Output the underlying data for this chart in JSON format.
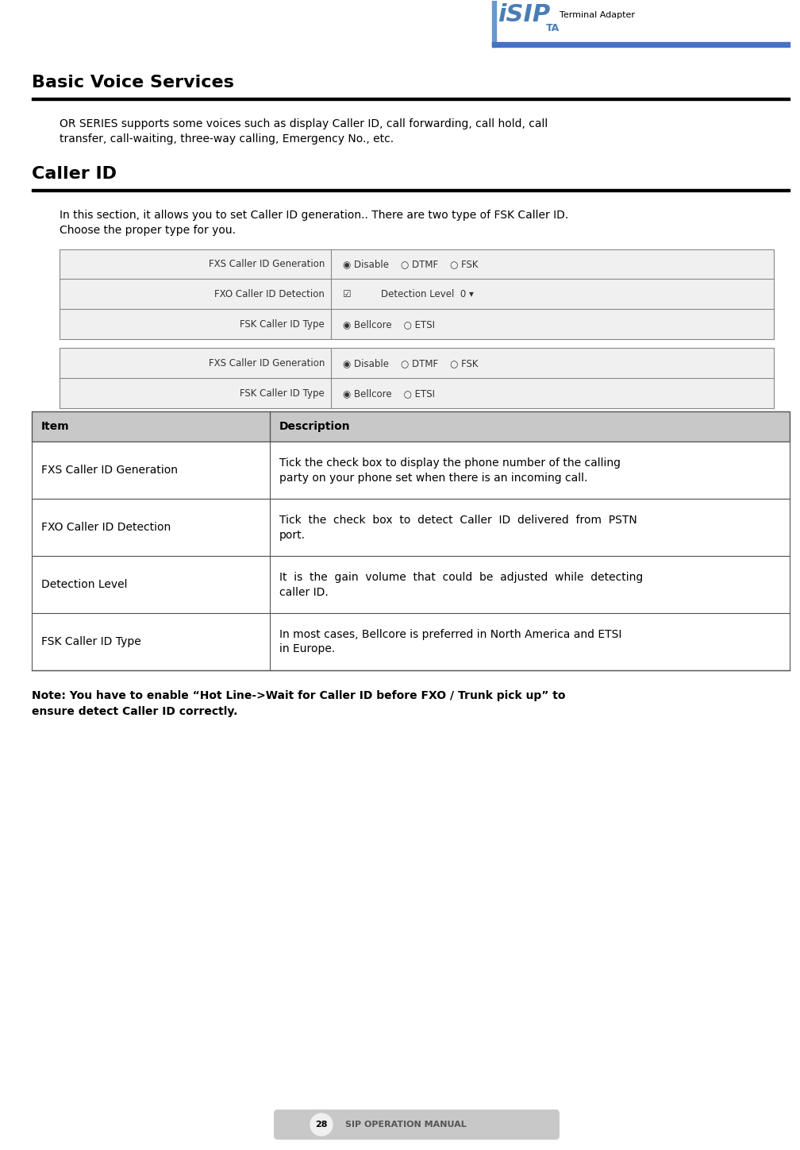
{
  "page_width": 10.08,
  "page_height": 14.48,
  "bg_color": "#ffffff",
  "header_logo_text": "Terminal Adapter",
  "header_logo_color": "#4472c4",
  "section1_title": "Basic Voice Services",
  "section1_body": "OR SERIES supports some voices such as display Caller ID, call forwarding, call hold, call\ntransfer, call-waiting, three-way calling, Emergency No., etc.",
  "section2_title": "Caller ID",
  "section2_body": "In this section, it allows you to set Caller ID generation.. There are two type of FSK Caller ID.\nChoose the proper type for you.",
  "table1_rows": [
    [
      "FXS Caller ID Generation",
      "◉ Disable    ○ DTMF    ○ FSK"
    ],
    [
      "FXO Caller ID Detection",
      "☑          Detection Level  0 ▾"
    ],
    [
      "FSK Caller ID Type",
      "◉ Bellcore    ○ ETSI"
    ]
  ],
  "table2_rows": [
    [
      "FXS Caller ID Generation",
      "◉ Disable    ○ DTMF    ○ FSK"
    ],
    [
      "FSK Caller ID Type",
      "◉ Bellcore    ○ ETSI"
    ]
  ],
  "desc_table_header": [
    "Item",
    "Description"
  ],
  "desc_table_rows": [
    [
      "FXS Caller ID Generation",
      "Tick the check box to display the phone number of the calling\nparty on your phone set when there is an incoming call."
    ],
    [
      "FXO Caller ID Detection",
      "Tick  the  check  box  to  detect  Caller  ID  delivered  from  PSTN\nport."
    ],
    [
      "Detection Level",
      "It  is  the  gain  volume  that  could  be  adjusted  while  detecting\ncaller ID."
    ],
    [
      "FSK Caller ID Type",
      "In most cases, Bellcore is preferred in North America and ETSI\nin Europe."
    ]
  ],
  "note_text": "Note: You have to enable “Hot Line->Wait for Caller ID before FXO / Trunk pick up” to\nensure detect Caller ID correctly.",
  "footer_text": "28    SIP OPERATION MANUAL",
  "table_bg": "#f0f0f0",
  "table_border": "#888888",
  "header_row_bg": "#d0d0d0",
  "desc_header_bg": "#c8c8c8"
}
